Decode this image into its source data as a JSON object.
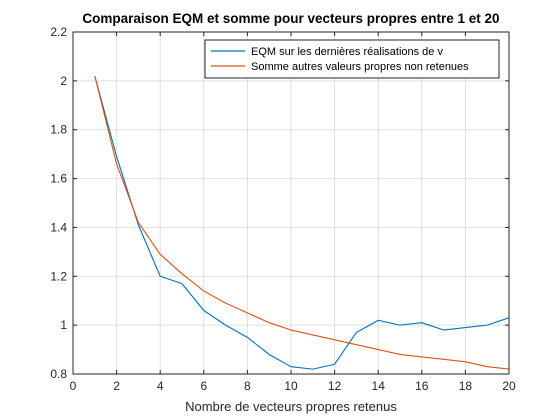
{
  "chart_data": {
    "type": "line",
    "title": "Comparaison EQM et somme pour vecteurs propres entre 1 et 20",
    "xlabel": "Nombre de vecteurs propres retenus",
    "ylabel": "",
    "xlim": [
      0,
      20
    ],
    "ylim": [
      0.8,
      2.2
    ],
    "xticks": [
      0,
      2,
      4,
      6,
      8,
      10,
      12,
      14,
      16,
      18,
      20
    ],
    "yticks": [
      0.8,
      1,
      1.2,
      1.4,
      1.6,
      1.8,
      2,
      2.2
    ],
    "grid": true,
    "legend_position": "top-right",
    "x": [
      1,
      2,
      3,
      4,
      5,
      6,
      7,
      8,
      9,
      10,
      11,
      12,
      13,
      14,
      15,
      16,
      17,
      18,
      19,
      20
    ],
    "series": [
      {
        "name": "EQM sur les dernières réalisations de v",
        "color": "#0072BD",
        "values": [
          2.02,
          1.69,
          1.41,
          1.2,
          1.17,
          1.06,
          1.0,
          0.95,
          0.88,
          0.83,
          0.82,
          0.84,
          0.97,
          1.02,
          1.0,
          1.01,
          0.98,
          0.99,
          1.0,
          1.03
        ]
      },
      {
        "name": "Somme autres valeurs propres non retenues",
        "color": "#D95319",
        "values": [
          2.02,
          1.66,
          1.42,
          1.29,
          1.21,
          1.14,
          1.09,
          1.05,
          1.01,
          0.98,
          0.96,
          0.94,
          0.92,
          0.9,
          0.88,
          0.87,
          0.86,
          0.85,
          0.83,
          0.82
        ]
      }
    ]
  }
}
